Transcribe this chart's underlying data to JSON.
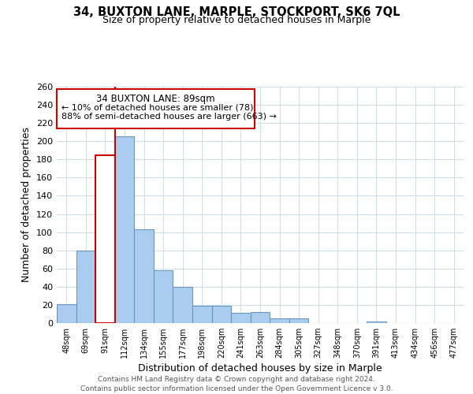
{
  "title1": "34, BUXTON LANE, MARPLE, STOCKPORT, SK6 7QL",
  "title2": "Size of property relative to detached houses in Marple",
  "xlabel": "Distribution of detached houses by size in Marple",
  "ylabel": "Number of detached properties",
  "bar_labels": [
    "48sqm",
    "69sqm",
    "91sqm",
    "112sqm",
    "134sqm",
    "155sqm",
    "177sqm",
    "198sqm",
    "220sqm",
    "241sqm",
    "263sqm",
    "284sqm",
    "305sqm",
    "327sqm",
    "348sqm",
    "370sqm",
    "391sqm",
    "413sqm",
    "434sqm",
    "456sqm",
    "477sqm"
  ],
  "bar_heights": [
    21,
    80,
    185,
    205,
    103,
    58,
    40,
    19,
    19,
    11,
    12,
    5,
    5,
    0,
    0,
    0,
    2,
    0,
    0,
    0,
    0
  ],
  "highlight_bar_index": 2,
  "highlight_color": "#cc0000",
  "bar_color": "#aaccee",
  "bar_edge_color": "#6699bb",
  "ylim": [
    0,
    260
  ],
  "yticks": [
    0,
    20,
    40,
    60,
    80,
    100,
    120,
    140,
    160,
    180,
    200,
    220,
    240,
    260
  ],
  "annotation_title": "34 BUXTON LANE: 89sqm",
  "annotation_line1": "← 10% of detached houses are smaller (78)",
  "annotation_line2": "88% of semi-detached houses are larger (663) →",
  "footer1": "Contains HM Land Registry data © Crown copyright and database right 2024.",
  "footer2": "Contains public sector information licensed under the Open Government Licence v 3.0.",
  "background_color": "#ffffff",
  "grid_color": "#ccdde8"
}
